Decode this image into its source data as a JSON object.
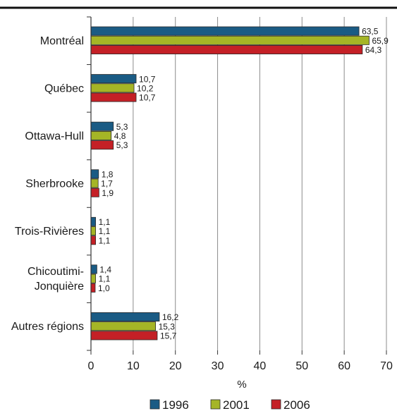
{
  "chart_data": {
    "type": "bar",
    "orientation": "horizontal",
    "categories": [
      "Montréal",
      "Québec",
      "Ottawa-Hull",
      "Sherbrooke",
      "Trois-Rivières",
      "Chicoutimi-Jonquière",
      "Autres régions"
    ],
    "category_label_lines": [
      [
        "Montréal"
      ],
      [
        "Québec"
      ],
      [
        "Ottawa-Hull"
      ],
      [
        "Sherbrooke"
      ],
      [
        "Trois-Rivières"
      ],
      [
        "Chicoutimi-",
        "Jonquière"
      ],
      [
        "Autres régions"
      ]
    ],
    "series": [
      {
        "name": "1996",
        "color": "#1a5b84",
        "values": [
          63.5,
          10.7,
          5.3,
          1.8,
          1.1,
          1.4,
          16.2
        ],
        "labels": [
          "63,5",
          "10,7",
          "5,3",
          "1,8",
          "1,1",
          "1,4",
          "16,2"
        ]
      },
      {
        "name": "2001",
        "color": "#a5b526",
        "values": [
          65.9,
          10.2,
          4.8,
          1.7,
          1.1,
          1.1,
          15.3
        ],
        "labels": [
          "65,9",
          "10,2",
          "4,8",
          "1,7",
          "1,1",
          "1,1",
          "15,3"
        ]
      },
      {
        "name": "2006",
        "color": "#c42026",
        "values": [
          64.3,
          10.7,
          5.3,
          1.9,
          1.1,
          1.0,
          15.7
        ],
        "labels": [
          "64,3",
          "10,7",
          "5,3",
          "1,9",
          "1,1",
          "1,0",
          "15,7"
        ]
      }
    ],
    "xlabel": "%",
    "xlim": [
      0,
      70
    ],
    "xticks": [
      0,
      10,
      20,
      30,
      40,
      50,
      60,
      70
    ],
    "grid": true,
    "legend_position": "bottom"
  }
}
